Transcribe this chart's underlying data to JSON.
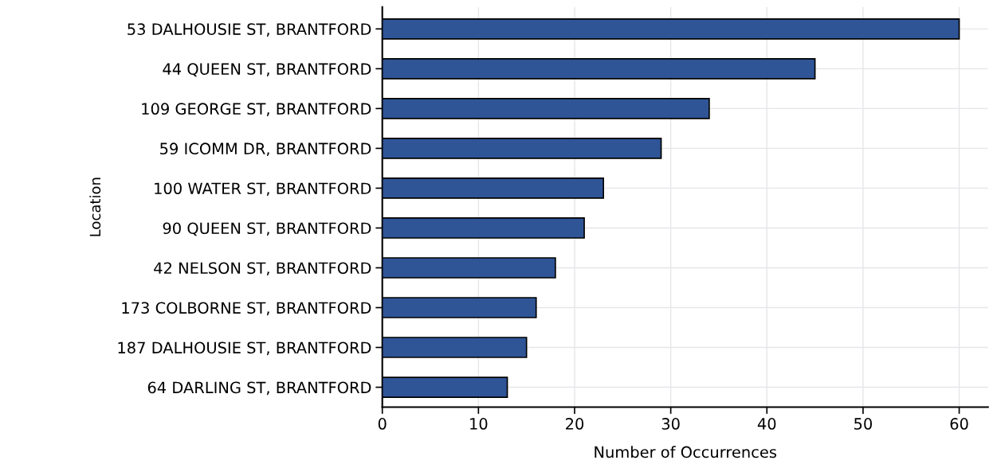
{
  "chart_data": {
    "type": "bar",
    "orientation": "horizontal",
    "xlabel": "Number of Occurrences",
    "ylabel": "Location",
    "categories": [
      "53 DALHOUSIE ST, BRANTFORD",
      "44 QUEEN ST, BRANTFORD",
      "109 GEORGE ST, BRANTFORD",
      "59 ICOMM DR, BRANTFORD",
      "100 WATER ST, BRANTFORD",
      "90 QUEEN ST, BRANTFORD",
      "42 NELSON ST, BRANTFORD",
      "173 COLBORNE ST, BRANTFORD",
      "187 DALHOUSIE ST, BRANTFORD",
      "64 DARLING ST, BRANTFORD"
    ],
    "values": [
      60,
      45,
      34,
      29,
      23,
      21,
      18,
      16,
      15,
      13
    ],
    "color": "#2f5597",
    "xlim": [
      0,
      63
    ],
    "xticks": [
      0,
      10,
      20,
      30,
      40,
      50,
      60
    ],
    "grid": true
  }
}
